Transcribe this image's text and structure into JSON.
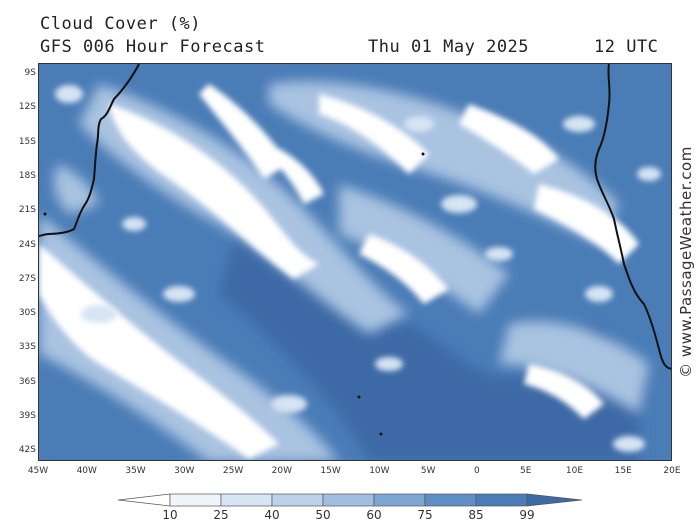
{
  "header": {
    "title": "Cloud Cover (%)",
    "subtitle": "GFS 006 Hour Forecast",
    "date": "Thu 01 May 2025",
    "time": "12 UTC"
  },
  "map": {
    "lat_labels": [
      "9S",
      "12S",
      "15S",
      "18S",
      "21S",
      "24S",
      "27S",
      "30S",
      "33S",
      "36S",
      "39S",
      "42S"
    ],
    "lon_labels": [
      "45W",
      "40W",
      "35W",
      "30W",
      "25W",
      "20W",
      "15W",
      "10W",
      "5W",
      "0",
      "5E",
      "10E",
      "15E",
      "20E"
    ],
    "colors": {
      "ocean_base": "#4a7cb6",
      "deep": "#3c6aa6",
      "cloud_light": "#a9c3e1",
      "cloud_pale": "#d6e4f3",
      "cloud_white": "#ffffff",
      "coast": "#111111"
    }
  },
  "legend": {
    "labels": [
      "10",
      "25",
      "40",
      "50",
      "60",
      "75",
      "85",
      "99"
    ],
    "colors": [
      "#ffffff",
      "#f0f5fb",
      "#d6e4f3",
      "#bcd2eb",
      "#a0bedf",
      "#7ea6d2",
      "#5f8ec4",
      "#4a7cb6",
      "#3c6aa6"
    ]
  },
  "watermark": "© www.PassageWeather.com"
}
